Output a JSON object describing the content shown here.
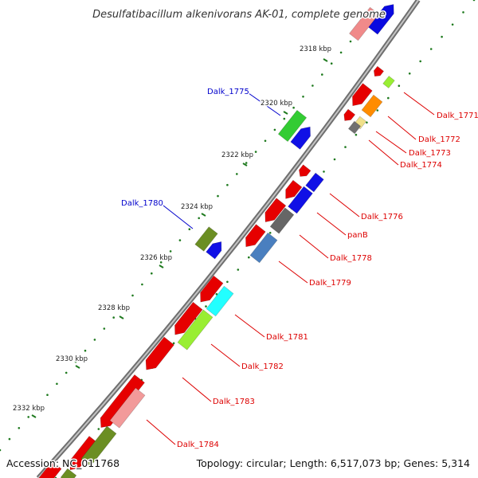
{
  "title": "Desulfatibacillum alkenivorans AK-01, complete genome",
  "accession_label": "Accession: NC_011768",
  "topology_label": "Topology: circular; Length: 6,517,073 bp; Genes: 5,314",
  "colors": {
    "forward_label": "#0000cc",
    "reverse_label": "#dd0000",
    "backbone": "#808080",
    "dotted_ring": "#1f7a1f"
  },
  "ticks": [
    "2318 kbp",
    "2320 kbp",
    "2322 kbp",
    "2324 kbp",
    "2326 kbp",
    "2328 kbp",
    "2330 kbp",
    "2332 kbp"
  ],
  "forward_labels": [
    "Dalk_1775",
    "Dalk_1780"
  ],
  "reverse_labels": [
    "Dalk_1771",
    "Dalk_1772",
    "Dalk_1773",
    "Dalk_1774",
    "Dalk_1776",
    "panB",
    "Dalk_1778",
    "Dalk_1779",
    "Dalk_1781",
    "Dalk_1782",
    "Dalk_1783",
    "Dalk_1784"
  ]
}
